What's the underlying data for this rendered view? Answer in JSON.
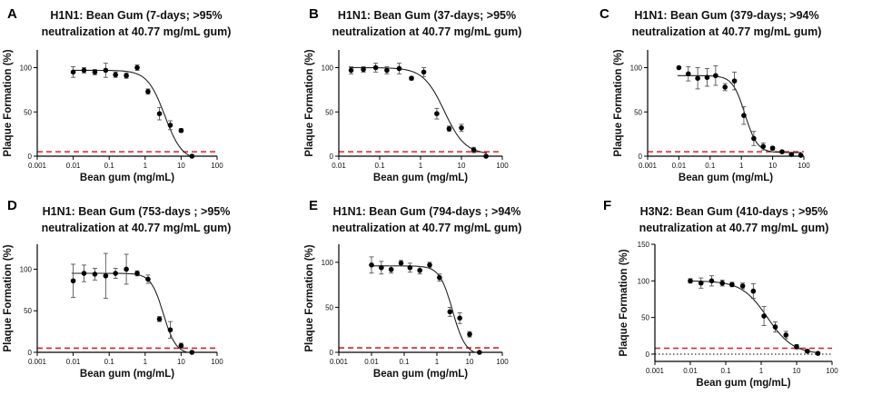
{
  "figure": {
    "threshold_color": "#e02020",
    "point_color": "#000000"
  },
  "chart_data": [
    {
      "panel": "A",
      "type": "scatter",
      "title_line1": "H1N1: Bean Gum (7-days; >95%",
      "title_line2": "neutralization at 40.77 mg/mL gum)",
      "xlabel": "Bean gum (mg/mL)",
      "ylabel": "Plaque Formation (%)",
      "xscale": "log",
      "xlim": [
        0.001,
        100
      ],
      "ylim": [
        0,
        120
      ],
      "xticks": [
        0.001,
        0.01,
        0.1,
        1,
        10,
        100
      ],
      "xtick_labels": [
        "0.001",
        "0.01",
        "0.1",
        "1",
        "10",
        "100"
      ],
      "yticks": [
        0,
        50,
        100
      ],
      "ytick_labels": [
        "0",
        "50",
        "100"
      ],
      "threshold": 5,
      "points": [
        {
          "x": 0.01,
          "y": 95,
          "err": 6
        },
        {
          "x": 0.02,
          "y": 97,
          "err": 3
        },
        {
          "x": 0.04,
          "y": 95,
          "err": 3
        },
        {
          "x": 0.08,
          "y": 97,
          "err": 8
        },
        {
          "x": 0.15,
          "y": 92,
          "err": 3
        },
        {
          "x": 0.3,
          "y": 91,
          "err": 3
        },
        {
          "x": 0.6,
          "y": 100,
          "err": 3
        },
        {
          "x": 1.2,
          "y": 73,
          "err": 3
        },
        {
          "x": 2.5,
          "y": 48,
          "err": 7
        },
        {
          "x": 5,
          "y": 35,
          "err": 5
        },
        {
          "x": 10,
          "y": 29,
          "err": 2
        },
        {
          "x": 20,
          "y": 0,
          "err": 0
        }
      ],
      "fit": {
        "top": 97,
        "bottom": -5,
        "ic50": 3.5,
        "hill": 1.8
      }
    },
    {
      "panel": "B",
      "type": "scatter",
      "title_line1": "H1N1: Bean Gum (37-days; >95%",
      "title_line2": "neutralization at 40.77 mg/mL gum)",
      "xlabel": "Bean gum (mg/mL)",
      "ylabel": "Plaque Formation (%)",
      "xscale": "log",
      "xlim": [
        0.01,
        100
      ],
      "ylim": [
        0,
        120
      ],
      "xticks": [
        0.01,
        0.1,
        1,
        10,
        100
      ],
      "xtick_labels": [
        "0.01",
        "0.1",
        "1",
        "10",
        "100"
      ],
      "yticks": [
        0,
        50,
        100
      ],
      "ytick_labels": [
        "0",
        "50",
        "100"
      ],
      "threshold": 5,
      "points": [
        {
          "x": 0.02,
          "y": 97,
          "err": 4
        },
        {
          "x": 0.04,
          "y": 98,
          "err": 3
        },
        {
          "x": 0.08,
          "y": 100,
          "err": 5
        },
        {
          "x": 0.15,
          "y": 97,
          "err": 4
        },
        {
          "x": 0.3,
          "y": 99,
          "err": 6
        },
        {
          "x": 0.6,
          "y": 88,
          "err": 2
        },
        {
          "x": 1.2,
          "y": 95,
          "err": 5
        },
        {
          "x": 2.5,
          "y": 48,
          "err": 6
        },
        {
          "x": 5,
          "y": 31,
          "err": 3
        },
        {
          "x": 10,
          "y": 32,
          "err": 4
        },
        {
          "x": 20,
          "y": 7,
          "err": 3
        },
        {
          "x": 40,
          "y": 0,
          "err": 0
        }
      ],
      "fit": {
        "top": 100,
        "bottom": 2,
        "ic50": 3.8,
        "hill": 1.7
      }
    },
    {
      "panel": "C",
      "type": "scatter",
      "title_line1": "H1N1: Bean Gum (379-days; >94%",
      "title_line2": "neutralization at 40.77 mg/mL gum)",
      "xlabel": "Bean gum (mg/mL)",
      "ylabel": "Plaque Formation (%)",
      "xscale": "log",
      "xlim": [
        0.001,
        100
      ],
      "ylim": [
        0,
        120
      ],
      "xticks": [
        0.001,
        0.01,
        0.1,
        1,
        10,
        100
      ],
      "xtick_labels": [
        "0.001",
        "0.01",
        "0.1",
        "1",
        "10",
        "100"
      ],
      "yticks": [
        0,
        50,
        100
      ],
      "ytick_labels": [
        "0",
        "50",
        "100"
      ],
      "threshold": 5,
      "points": [
        {
          "x": 0.01,
          "y": 100,
          "err": 0
        },
        {
          "x": 0.02,
          "y": 93,
          "err": 8
        },
        {
          "x": 0.04,
          "y": 88,
          "err": 12
        },
        {
          "x": 0.08,
          "y": 89,
          "err": 10
        },
        {
          "x": 0.15,
          "y": 91,
          "err": 11
        },
        {
          "x": 0.3,
          "y": 78,
          "err": 4
        },
        {
          "x": 0.6,
          "y": 85,
          "err": 10
        },
        {
          "x": 1.2,
          "y": 46,
          "err": 10
        },
        {
          "x": 2.5,
          "y": 20,
          "err": 8
        },
        {
          "x": 5,
          "y": 11,
          "err": 4
        },
        {
          "x": 10,
          "y": 9,
          "err": 2
        },
        {
          "x": 20,
          "y": 5,
          "err": 1
        },
        {
          "x": 40,
          "y": 2,
          "err": 1
        },
        {
          "x": 80,
          "y": 1,
          "err": 1
        }
      ],
      "fit": {
        "top": 91,
        "bottom": 4,
        "ic50": 1.3,
        "hill": 2.2
      }
    },
    {
      "panel": "D",
      "type": "scatter",
      "title_line1": "H1N1: Bean Gum (753-days ; >95%",
      "title_line2": "neutralization at 40.77 mg/mL gum)",
      "xlabel": "Bean gum (mg/mL)",
      "ylabel": "Plaque Formation (%)",
      "xscale": "log",
      "xlim": [
        0.001,
        100
      ],
      "ylim": [
        0,
        130
      ],
      "xticks": [
        0.001,
        0.01,
        0.1,
        1,
        10,
        100
      ],
      "xtick_labels": [
        "0.001",
        "0.01",
        "0.1",
        "1",
        "10",
        "100"
      ],
      "yticks": [
        0,
        50,
        100
      ],
      "ytick_labels": [
        "0",
        "50",
        "100"
      ],
      "threshold": 5,
      "points": [
        {
          "x": 0.01,
          "y": 86,
          "err": 20
        },
        {
          "x": 0.02,
          "y": 95,
          "err": 10
        },
        {
          "x": 0.04,
          "y": 94,
          "err": 7
        },
        {
          "x": 0.08,
          "y": 92,
          "err": 27
        },
        {
          "x": 0.15,
          "y": 95,
          "err": 6
        },
        {
          "x": 0.3,
          "y": 100,
          "err": 18
        },
        {
          "x": 0.6,
          "y": 95,
          "err": 3
        },
        {
          "x": 1.2,
          "y": 88,
          "err": 5
        },
        {
          "x": 2.5,
          "y": 40,
          "err": 3
        },
        {
          "x": 5,
          "y": 27,
          "err": 10
        },
        {
          "x": 10,
          "y": 8,
          "err": 3
        },
        {
          "x": 20,
          "y": 0,
          "err": 0
        }
      ],
      "fit": {
        "top": 95,
        "bottom": -2,
        "ic50": 3.2,
        "hill": 2.5
      }
    },
    {
      "panel": "E",
      "type": "scatter",
      "title_line1": "H1N1: Bean Gum (794-days ; >94%",
      "title_line2": "neutralization at 40.77 mg/mL gum)",
      "xlabel": "Bean gum (mg/mL)",
      "ylabel": "Plaque Formation (%)",
      "xscale": "log",
      "xlim": [
        0.001,
        100
      ],
      "ylim": [
        0,
        120
      ],
      "xticks": [
        0.001,
        0.01,
        0.1,
        1,
        10,
        100
      ],
      "xtick_labels": [
        "0.001",
        "0.01",
        "0.1",
        "1",
        "10",
        "100"
      ],
      "yticks": [
        0,
        50,
        100
      ],
      "ytick_labels": [
        "0",
        "50",
        "100"
      ],
      "threshold": 5,
      "points": [
        {
          "x": 0.01,
          "y": 97,
          "err": 9
        },
        {
          "x": 0.02,
          "y": 94,
          "err": 7
        },
        {
          "x": 0.04,
          "y": 92,
          "err": 4
        },
        {
          "x": 0.08,
          "y": 99,
          "err": 3
        },
        {
          "x": 0.15,
          "y": 94,
          "err": 5
        },
        {
          "x": 0.3,
          "y": 91,
          "err": 4
        },
        {
          "x": 0.6,
          "y": 97,
          "err": 3
        },
        {
          "x": 1.2,
          "y": 83,
          "err": 4
        },
        {
          "x": 2.5,
          "y": 45,
          "err": 5
        },
        {
          "x": 5,
          "y": 38,
          "err": 6
        },
        {
          "x": 10,
          "y": 20,
          "err": 3
        },
        {
          "x": 20,
          "y": 0,
          "err": 0
        }
      ],
      "fit": {
        "top": 96,
        "bottom": -3,
        "ic50": 3.0,
        "hill": 2.2
      }
    },
    {
      "panel": "F",
      "type": "scatter",
      "title_line1": "H3N2: Bean Gum (410-days ; >95%",
      "title_line2": "neutralization at 40.77 mg/mL gum)",
      "xlabel": "Bean gum (mg/mL)",
      "ylabel": "Plaque Formation (%)",
      "xscale": "log",
      "xlim": [
        0.001,
        100
      ],
      "ylim": [
        -10,
        150
      ],
      "xticks": [
        0.001,
        0.01,
        0.1,
        1,
        10,
        100
      ],
      "xtick_labels": [
        "0.001",
        "0.01",
        "0.1",
        "1",
        "10",
        "100"
      ],
      "yticks": [
        0,
        50,
        100,
        150
      ],
      "ytick_labels": [
        "0",
        "50",
        "100",
        "150"
      ],
      "threshold": 8,
      "zero_line": true,
      "points": [
        {
          "x": 0.01,
          "y": 100,
          "err": 3
        },
        {
          "x": 0.02,
          "y": 97,
          "err": 7
        },
        {
          "x": 0.04,
          "y": 100,
          "err": 7
        },
        {
          "x": 0.08,
          "y": 97,
          "err": 4
        },
        {
          "x": 0.15,
          "y": 95,
          "err": 3
        },
        {
          "x": 0.3,
          "y": 93,
          "err": 4
        },
        {
          "x": 0.6,
          "y": 86,
          "err": 10
        },
        {
          "x": 1.2,
          "y": 52,
          "err": 13
        },
        {
          "x": 2.5,
          "y": 37,
          "err": 7
        },
        {
          "x": 5,
          "y": 26,
          "err": 5
        },
        {
          "x": 10,
          "y": 10,
          "err": 3
        },
        {
          "x": 20,
          "y": 4,
          "err": 2
        },
        {
          "x": 40,
          "y": 1,
          "err": 1
        }
      ],
      "fit": {
        "top": 100,
        "bottom": 0,
        "ic50": 1.5,
        "hill": 1.2
      }
    }
  ]
}
